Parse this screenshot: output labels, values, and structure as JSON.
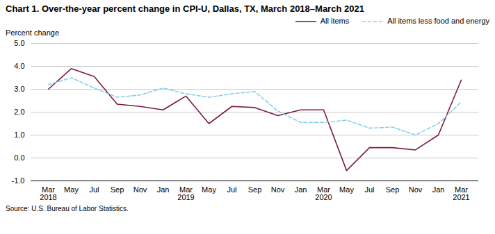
{
  "chart_data": {
    "type": "line",
    "title": "Chart 1. Over-the-year percent change in CPI-U, Dallas, TX, March 2018–March 2021",
    "ylabel": "Percent change",
    "source": "Source: U.S. Bureau of Labor Statistics.",
    "categories": [
      "Mar\n2018",
      "May",
      "Jul",
      "Sep",
      "Nov",
      "Jan",
      "Mar\n2019",
      "May",
      "Jul",
      "Sep",
      "Nov",
      "Jan",
      "Mar\n2020",
      "May",
      "Jul",
      "Sep",
      "Nov",
      "Jan",
      "Mar\n2021"
    ],
    "series": [
      {
        "name": "All items",
        "color": "#7b1a3e",
        "line_style": "solid",
        "values": [
          3.0,
          3.9,
          3.55,
          2.35,
          2.25,
          2.1,
          2.7,
          1.5,
          2.25,
          2.2,
          1.85,
          2.1,
          2.1,
          -0.55,
          0.45,
          0.45,
          0.35,
          1.0,
          3.4
        ]
      },
      {
        "name": "All items less food and energy",
        "color": "#87ceeb",
        "line_style": "dashed",
        "values": [
          3.2,
          3.5,
          3.05,
          2.65,
          2.75,
          3.05,
          2.8,
          2.65,
          2.8,
          2.9,
          2.05,
          1.55,
          1.55,
          1.65,
          1.3,
          1.35,
          1.0,
          1.5,
          2.45
        ]
      }
    ],
    "ylim": [
      -1.0,
      5.0
    ],
    "yticks": [
      {
        "value": -1.0,
        "label": "-1.0"
      },
      {
        "value": 0.0,
        "label": "0.0"
      },
      {
        "value": 1.0,
        "label": "1.0"
      },
      {
        "value": 2.0,
        "label": "2.0"
      },
      {
        "value": 3.0,
        "label": "3.0"
      },
      {
        "value": 4.0,
        "label": "4.0"
      },
      {
        "value": 5.0,
        "label": "5.0"
      }
    ],
    "grid": true,
    "legend": "top-right"
  }
}
